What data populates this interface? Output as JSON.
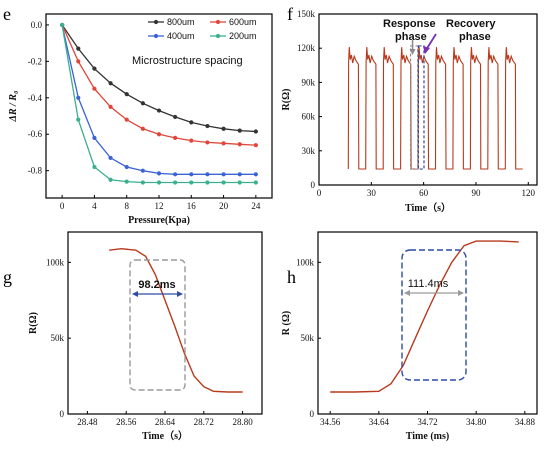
{
  "chart_data": [
    {
      "panel": "e",
      "type": "line",
      "xlabel": "Pressure(Kpa)",
      "ylabel": "ΔR / R₀",
      "xlim": [
        -2,
        26
      ],
      "ylim": [
        -0.95,
        0.06
      ],
      "xticks": [
        0,
        4,
        8,
        12,
        16,
        20,
        24
      ],
      "yticks": [
        0.0,
        -0.2,
        -0.4,
        -0.6,
        -0.8
      ],
      "annotation": "Microstructure spacing",
      "legend_position": "top-right",
      "series": [
        {
          "name": "800um",
          "color": "#333333",
          "x": [
            0,
            2,
            4,
            6,
            8,
            10,
            12,
            14,
            16,
            18,
            20,
            22,
            24
          ],
          "y": [
            0,
            -0.13,
            -0.24,
            -0.32,
            -0.38,
            -0.43,
            -0.47,
            -0.505,
            -0.535,
            -0.555,
            -0.57,
            -0.58,
            -0.585
          ]
        },
        {
          "name": "600um",
          "color": "#e0473a",
          "x": [
            0,
            2,
            4,
            6,
            8,
            10,
            12,
            14,
            16,
            18,
            20,
            22,
            24
          ],
          "y": [
            0,
            -0.2,
            -0.35,
            -0.45,
            -0.52,
            -0.57,
            -0.6,
            -0.62,
            -0.635,
            -0.645,
            -0.65,
            -0.655,
            -0.66
          ]
        },
        {
          "name": "400um",
          "color": "#3b63d6",
          "x": [
            0,
            2,
            4,
            6,
            8,
            10,
            12,
            14,
            16,
            18,
            20,
            22,
            24
          ],
          "y": [
            0,
            -0.4,
            -0.62,
            -0.73,
            -0.78,
            -0.8,
            -0.815,
            -0.82,
            -0.82,
            -0.82,
            -0.82,
            -0.82,
            -0.82
          ]
        },
        {
          "name": "200um",
          "color": "#3bb08f",
          "x": [
            0,
            2,
            4,
            6,
            8,
            10,
            12,
            14,
            16,
            18,
            20,
            22,
            24
          ],
          "y": [
            0,
            -0.52,
            -0.78,
            -0.85,
            -0.86,
            -0.865,
            -0.865,
            -0.865,
            -0.865,
            -0.865,
            -0.865,
            -0.865,
            -0.865
          ]
        }
      ]
    },
    {
      "panel": "f",
      "type": "line",
      "xlabel": "Time（s）",
      "ylabel": "R(Ω)",
      "xlim": [
        0,
        125
      ],
      "ylim": [
        0,
        150000
      ],
      "xticks": [
        0,
        30,
        60,
        90,
        120
      ],
      "ytick_values": [
        0,
        30000,
        60000,
        90000,
        120000,
        150000
      ],
      "ytick_labels": [
        "0",
        "30k",
        "60k",
        "90k",
        "120k",
        "150k"
      ],
      "low": 14000,
      "high": 108000,
      "peak": 121000,
      "pulse_starts": [
        17,
        27,
        37,
        47,
        57,
        67,
        77,
        87,
        97,
        107
      ],
      "pulse_width": 5.6,
      "annotations": [
        {
          "label": "Response phase",
          "lines": [
            "Response",
            "phase"
          ],
          "color": "#8c8c8c"
        },
        {
          "label": "Recovery phase",
          "lines": [
            "Recovery",
            "phase"
          ],
          "color": "#3a4590"
        }
      ],
      "series": [
        {
          "color": "#b83a1e"
        }
      ]
    },
    {
      "panel": "g",
      "type": "line",
      "xlabel": "Time（s）",
      "ylabel": "R(Ω)",
      "xlim": [
        28.44,
        28.84
      ],
      "ylim": [
        0,
        120000
      ],
      "xticks": [
        28.48,
        28.56,
        28.64,
        28.72,
        28.8
      ],
      "ytick_values": [
        0,
        50000,
        100000
      ],
      "ytick_labels": [
        "0",
        "50k",
        "100k"
      ],
      "annotation": "98.2ms",
      "x": [
        28.525,
        28.55,
        28.58,
        28.6,
        28.62,
        28.64,
        28.66,
        28.68,
        28.7,
        28.72,
        28.74,
        28.77,
        28.8
      ],
      "y": [
        108000,
        109000,
        108000,
        104000,
        92000,
        75000,
        58000,
        40000,
        25000,
        18000,
        15000,
        14500,
        14500
      ],
      "series": [
        {
          "color": "#b83a1e"
        }
      ]
    },
    {
      "panel": "h",
      "type": "line",
      "xlabel": "Time (ms)",
      "ylabel": "R (Ω)",
      "xlim": [
        34.54,
        34.9
      ],
      "ylim": [
        0,
        120000
      ],
      "xticks": [
        34.56,
        34.64,
        34.72,
        34.8,
        34.88
      ],
      "ytick_values": [
        0,
        50000,
        100000
      ],
      "ytick_labels": [
        "0",
        "50k",
        "100k"
      ],
      "annotation": "111.4ms",
      "x": [
        34.56,
        34.6,
        34.64,
        34.66,
        34.68,
        34.7,
        34.72,
        34.74,
        34.76,
        34.78,
        34.8,
        34.84,
        34.87
      ],
      "y": [
        14500,
        14500,
        15000,
        20000,
        32000,
        50000,
        68000,
        85000,
        100000,
        111000,
        114000,
        114000,
        113500
      ],
      "series": [
        {
          "color": "#b83a1e"
        }
      ]
    }
  ]
}
